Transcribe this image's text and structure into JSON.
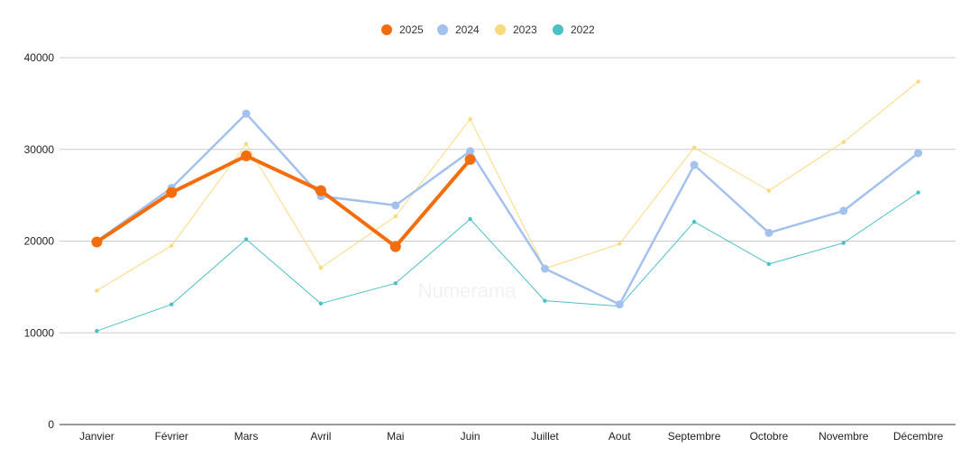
{
  "watermark": "Numerama",
  "chart_data": {
    "type": "line",
    "title": "",
    "xlabel": "",
    "ylabel": "",
    "categories": [
      "Janvier",
      "Février",
      "Mars",
      "Avril",
      "Mai",
      "Juin",
      "Juillet",
      "Aout",
      "Septembre",
      "Octobre",
      "Novembre",
      "Décembre"
    ],
    "ylim": [
      0,
      40000
    ],
    "yticks": [
      0,
      10000,
      20000,
      30000,
      40000
    ],
    "grid": true,
    "legend_position": "top-center",
    "series": [
      {
        "name": "2025",
        "color": "#f46d0d",
        "values": [
          19900,
          25300,
          29300,
          25500,
          19400,
          28900,
          null,
          null,
          null,
          null,
          null,
          null
        ]
      },
      {
        "name": "2024",
        "color": "#a4c1ee",
        "values": [
          20000,
          25800,
          33900,
          24900,
          23900,
          29800,
          17000,
          13100,
          28300,
          20900,
          23300,
          29600
        ]
      },
      {
        "name": "2023",
        "color": "#fad97e",
        "values": [
          14600,
          19500,
          30600,
          17100,
          22700,
          33300,
          17000,
          19700,
          30200,
          25500,
          30800,
          37400
        ]
      },
      {
        "name": "2022",
        "color": "#4bc0c8",
        "values": [
          10200,
          13100,
          20200,
          13200,
          15400,
          22400,
          13500,
          12900,
          22100,
          17500,
          19800,
          25300
        ]
      }
    ]
  }
}
